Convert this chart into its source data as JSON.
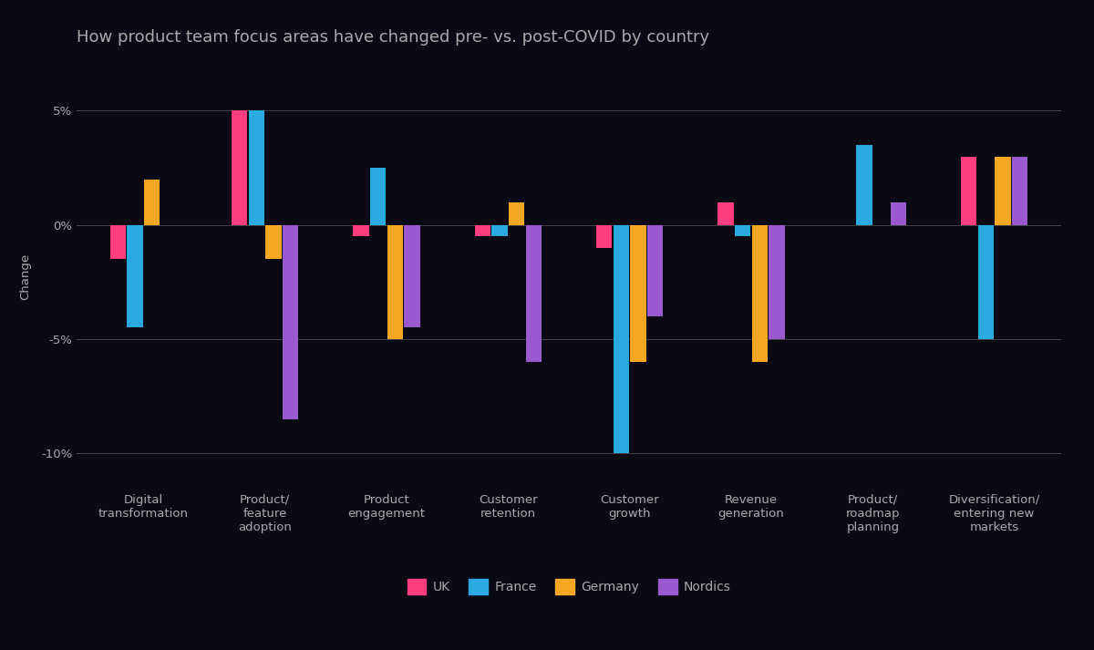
{
  "title": "How product team focus areas have changed pre- vs. post-COVID by country",
  "categories": [
    "Digital\ntransformation",
    "Product/\nfeature\nadoption",
    "Product\nengagement",
    "Customer\nretention",
    "Customer\ngrowth",
    "Revenue\ngeneration",
    "Product/\nroadmap\nplanning",
    "Diversification/\nentering new\nmarkets"
  ],
  "series": {
    "UK": [
      -1.5,
      5.0,
      -0.5,
      -0.5,
      -1.0,
      1.0,
      0.0,
      3.0
    ],
    "France": [
      -4.5,
      5.0,
      2.5,
      -0.5,
      -10.0,
      -0.5,
      3.5,
      -5.0
    ],
    "Germany": [
      2.0,
      -1.5,
      -5.0,
      1.0,
      -6.0,
      -6.0,
      0.0,
      3.0
    ],
    "Nordics": [
      0.0,
      -8.5,
      -4.5,
      -6.0,
      -4.0,
      -5.0,
      1.0,
      3.0
    ]
  },
  "colors": {
    "UK": "#FF3D7F",
    "France": "#29ABE2",
    "Germany": "#F5A623",
    "Nordics": "#9B59D0"
  },
  "ylabel": "Change",
  "ylim": [
    -11.5,
    7.0
  ],
  "yticks": [
    -10,
    -5,
    0,
    5
  ],
  "yticklabels": [
    "-10%",
    "-5%",
    "0%",
    "5%"
  ],
  "bg_color": "#0a0a14",
  "text_color": "#aaaaaa",
  "grid_color": "#444444",
  "title_fontsize": 13,
  "tick_fontsize": 9.5,
  "bar_width": 0.13,
  "bar_spacing": 0.01
}
